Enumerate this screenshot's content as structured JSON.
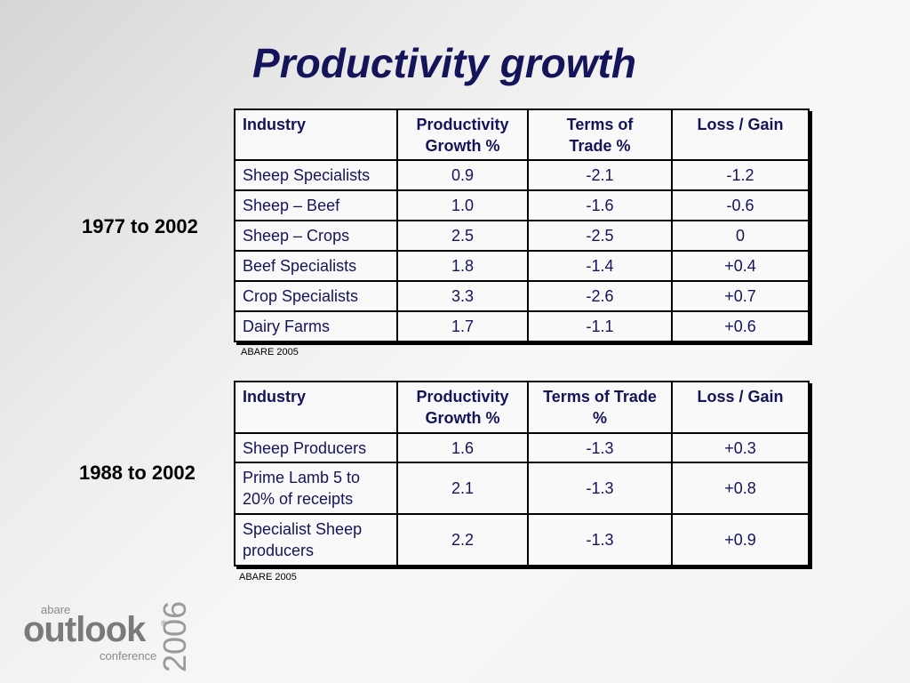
{
  "slide": {
    "title": "Productivity growth"
  },
  "table1": {
    "period": "1977 to 2002",
    "headers": [
      "Industry",
      "Productivity Growth %",
      "Terms of Trade %",
      "Loss / Gain"
    ],
    "rows": [
      [
        "Sheep Specialists",
        "0.9",
        "-2.1",
        "-1.2"
      ],
      [
        "Sheep – Beef",
        "1.0",
        "-1.6",
        "-0.6"
      ],
      [
        "Sheep – Crops",
        "2.5",
        "-2.5",
        "0"
      ],
      [
        "Beef Specialists",
        "1.8",
        "-1.4",
        "+0.4"
      ],
      [
        "Crop Specialists",
        "3.3",
        "-2.6",
        "+0.7"
      ],
      [
        "Dairy Farms",
        "1.7",
        "-1.1",
        "+0.6"
      ]
    ],
    "source": "ABARE 2005"
  },
  "table2": {
    "period": "1988 to 2002",
    "headers": [
      "Industry",
      "Productivity Growth %",
      "Terms of Trade %",
      "Loss / Gain"
    ],
    "rows": [
      [
        "Sheep Producers",
        "1.6",
        "-1.3",
        "+0.3"
      ],
      [
        "Prime Lamb 5 to 20% of receipts",
        "2.1",
        "-1.3",
        "+0.8"
      ],
      [
        "Specialist Sheep producers",
        "2.2",
        "-1.3",
        "+0.9"
      ]
    ],
    "source": "ABARE 2005"
  },
  "logo": {
    "abare": "abare",
    "outlook": "outlook",
    "conference": "conference",
    "year": "2006",
    "reg": "®"
  }
}
